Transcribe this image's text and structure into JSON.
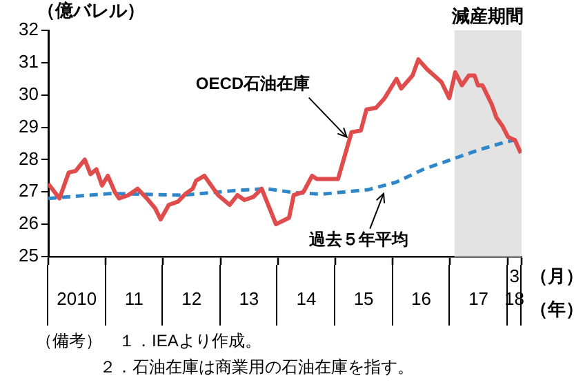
{
  "chart_data": {
    "type": "line",
    "ylabel": "（億バレル）",
    "xlabel": "（年）",
    "xlim": [
      "2010-01-01",
      "2018-04-01"
    ],
    "xticks": [
      {
        "value": "2010-01-01",
        "label": null
      },
      {
        "value": "2010-07-01",
        "label": "2010"
      },
      {
        "value": "2011-01-01",
        "label": null
      },
      {
        "value": "2011-07-01",
        "label": "11"
      },
      {
        "value": "2012-01-01",
        "label": null
      },
      {
        "value": "2012-07-01",
        "label": "12"
      },
      {
        "value": "2013-01-01",
        "label": null
      },
      {
        "value": "2013-07-01",
        "label": "13"
      },
      {
        "value": "2014-01-01",
        "label": null
      },
      {
        "value": "2014-07-01",
        "label": "14"
      },
      {
        "value": "2015-01-01",
        "label": null
      },
      {
        "value": "2015-07-01",
        "label": "15"
      },
      {
        "value": "2016-01-01",
        "label": null
      },
      {
        "value": "2016-07-01",
        "label": "16"
      },
      {
        "value": "2017-01-01",
        "label": null
      },
      {
        "value": "2017-07-01",
        "label": "17"
      },
      {
        "value": "2018-01-01",
        "label": null
      },
      {
        "value": "2018-02-14",
        "label": "18"
      },
      {
        "value": "2018-04-01",
        "label": null
      }
    ],
    "ylim": [
      25,
      32
    ],
    "yticks": [
      25,
      26,
      27,
      28,
      29,
      30,
      31,
      32
    ],
    "grid": false,
    "legend": false,
    "series": [
      {
        "color": "#e04b4b",
        "line_style": "solid",
        "x": [
          "2010-01-01",
          "2010-03-13",
          "2010-05-11",
          "2010-06-24",
          "2010-08-21",
          "2010-09-27",
          "2010-11-03",
          "2010-12-09",
          "2011-01-15",
          "2011-02-28",
          "2011-03-27",
          "2011-05-25",
          "2011-07-23",
          "2011-09-20",
          "2011-11-11",
          "2011-12-17",
          "2012-02-07",
          "2012-04-05",
          "2012-05-25",
          "2012-07-08",
          "2012-07-30",
          "2012-09-20",
          "2012-11-03",
          "2012-12-17",
          "2013-02-28",
          "2013-04-19",
          "2013-06-02",
          "2013-07-30",
          "2013-09-20",
          "2013-12-20",
          "2014-03-13",
          "2014-04-12",
          "2014-06-13",
          "2014-08-07",
          "2014-09-06",
          "2015-01-19",
          "2015-04-15",
          "2015-06-13",
          "2015-07-19",
          "2015-09-17",
          "2015-11-11",
          "2016-01-26",
          "2016-02-25",
          "2016-05-07",
          "2016-06-13",
          "2016-08-07",
          "2016-11-07",
          "2016-12-27",
          "2017-02-03",
          "2017-03-17",
          "2017-04-30",
          "2017-06-06",
          "2017-06-27",
          "2017-07-26",
          "2017-09-24",
          "2017-10-23",
          "2017-11-29",
          "2018-01-05",
          "2018-02-18",
          "2018-03-27"
        ],
        "values": [
          27.25,
          26.8,
          27.6,
          27.65,
          28,
          27.55,
          27.7,
          27.2,
          27.5,
          27,
          26.8,
          26.9,
          27.1,
          26.8,
          26.5,
          26.15,
          26.6,
          26.7,
          26.95,
          27.1,
          27.35,
          27.5,
          27.2,
          26.9,
          26.6,
          26.9,
          26.75,
          26.85,
          27.1,
          26,
          26.2,
          26.9,
          27,
          27.5,
          27.4,
          27.4,
          28.85,
          28.9,
          29.55,
          29.6,
          29.9,
          30.5,
          30.2,
          30.6,
          31.1,
          30.8,
          30.4,
          29.9,
          30.7,
          30.3,
          30.6,
          30.6,
          30.3,
          30.3,
          29.7,
          29.3,
          29.05,
          28.7,
          28.6,
          28.2
        ]
      },
      {
        "color": "#2f86c8",
        "line_style": "dashed",
        "x": [
          "2010-01-01",
          "2011-01-30",
          "2012-05-07",
          "2013-04-19",
          "2013-10-19",
          "2014-04-12",
          "2014-10-05",
          "2015-07-30",
          "2016-01-23",
          "2016-07-15",
          "2017-01-08",
          "2017-07-01",
          "2017-12-24",
          "2018-04-01"
        ],
        "values": [
          26.8,
          26.95,
          26.9,
          27.05,
          27.1,
          26.98,
          26.93,
          27.07,
          27.3,
          27.7,
          28,
          28.3,
          28.55,
          28.65
        ]
      }
    ],
    "bands": [
      {
        "axis": "x",
        "from": "2017-01-29",
        "to": "2018-04-01",
        "label": "減産期間",
        "color": "#e3e3e3"
      }
    ],
    "annotations": [
      "3",
      "（月）",
      {
        "text": "OECD石油在庫",
        "x": "2015-03-15",
        "y": 28.7
      },
      {
        "text": "過去５年平均",
        "x": "2015-11-05",
        "y": 26.95
      },
      "（備考）　１．IEAより作成。",
      "２．石油在庫は商業用の石油在庫を指す。"
    ]
  }
}
